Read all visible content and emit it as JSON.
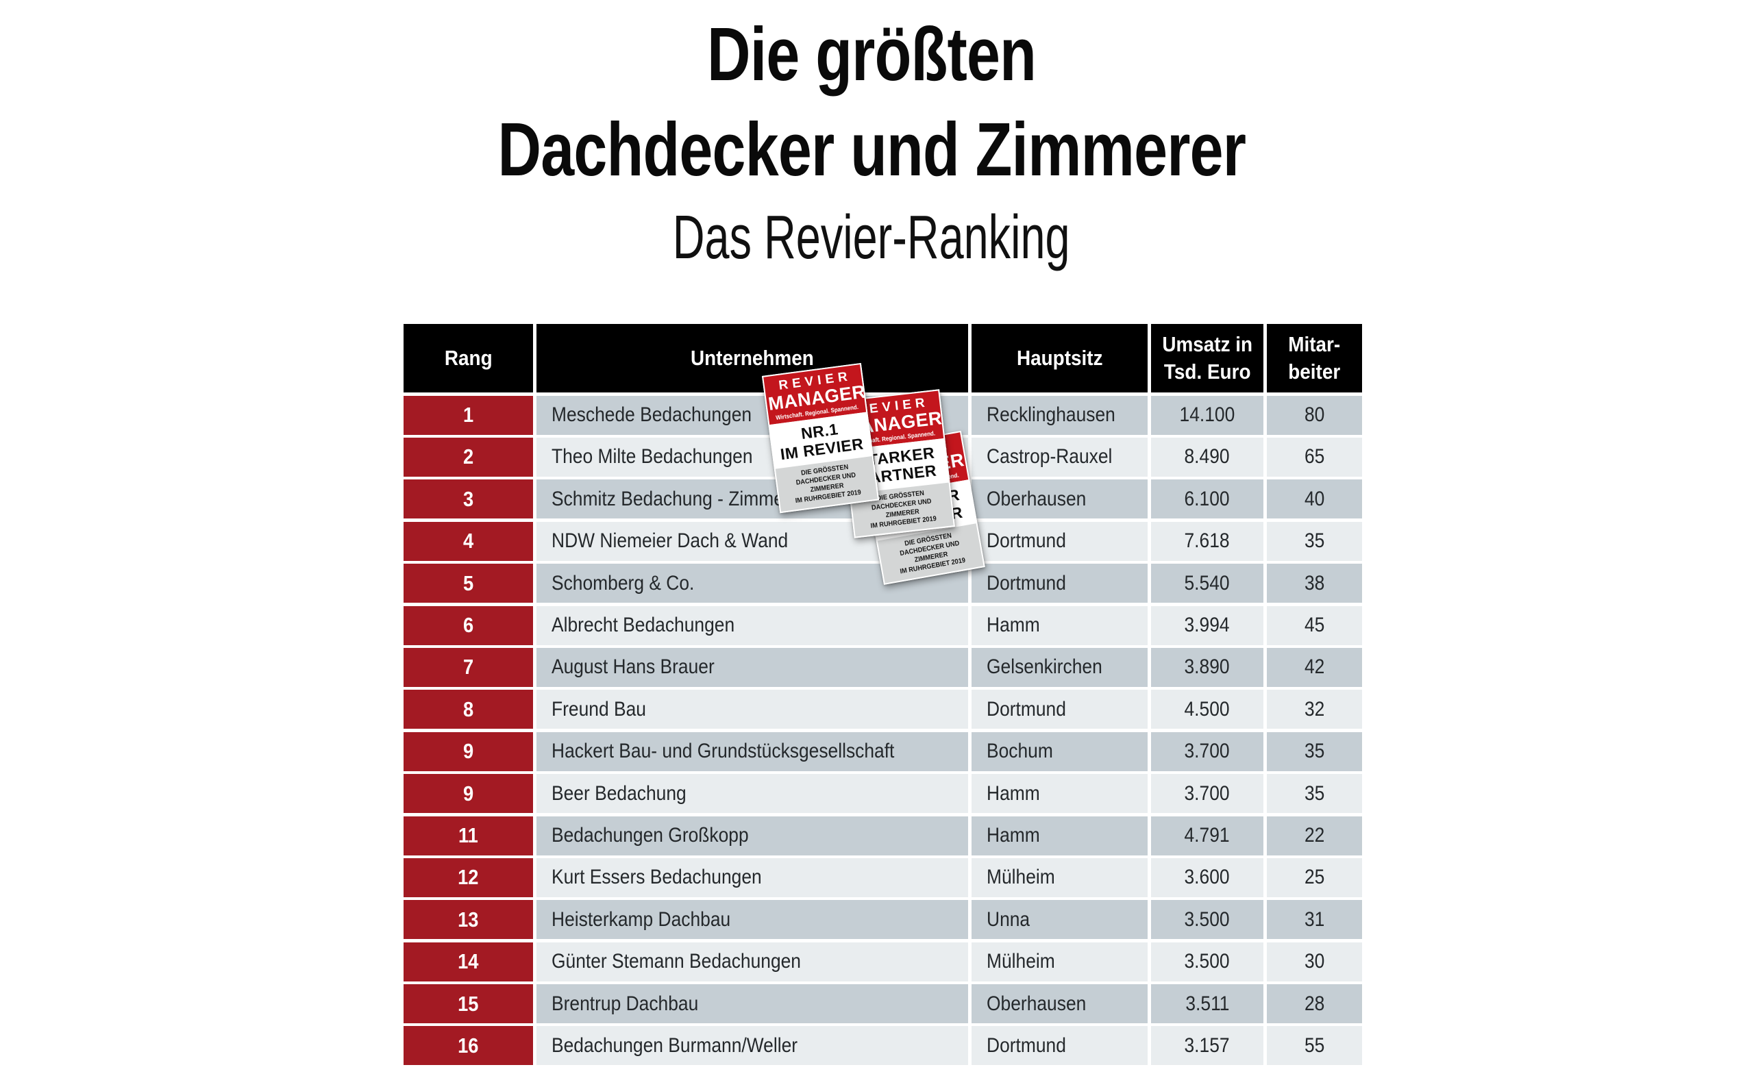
{
  "title": {
    "line1": "Die größten",
    "line2": "Dachdecker und Zimmerer",
    "subtitle": "Das Revier-Ranking"
  },
  "table": {
    "headers": {
      "rank": "Rang",
      "company": "Unternehmen",
      "city": "Hauptsitz",
      "revenue": "Umsatz in\nTsd. Euro",
      "employees": "Mitar-\nbeiter"
    },
    "rows": [
      {
        "rank": "1",
        "company": "Meschede Bedachungen",
        "city": "Recklinghausen",
        "revenue": "14.100",
        "employees": "80"
      },
      {
        "rank": "2",
        "company": "Theo Milte Bedachungen",
        "city": "Castrop-Rauxel",
        "revenue": "8.490",
        "employees": "65"
      },
      {
        "rank": "3",
        "company": "Schmitz Bedachung - Zimmerei",
        "city": "Oberhausen",
        "revenue": "6.100",
        "employees": "40"
      },
      {
        "rank": "4",
        "company": "NDW Niemeier Dach & Wand",
        "city": "Dortmund",
        "revenue": "7.618",
        "employees": "35"
      },
      {
        "rank": "5",
        "company": "Schomberg & Co.",
        "city": "Dortmund",
        "revenue": "5.540",
        "employees": "38"
      },
      {
        "rank": "6",
        "company": "Albrecht Bedachungen",
        "city": "Hamm",
        "revenue": "3.994",
        "employees": "45"
      },
      {
        "rank": "7",
        "company": "August Hans Brauer",
        "city": "Gelsenkirchen",
        "revenue": "3.890",
        "employees": "42"
      },
      {
        "rank": "8",
        "company": "Freund Bau",
        "city": "Dortmund",
        "revenue": "4.500",
        "employees": "32"
      },
      {
        "rank": "9",
        "company": "Hackert Bau- und Grundstücksgesellschaft",
        "city": "Bochum",
        "revenue": "3.700",
        "employees": "35"
      },
      {
        "rank": "9",
        "company": "Beer Bedachung",
        "city": "Hamm",
        "revenue": "3.700",
        "employees": "35"
      },
      {
        "rank": "11",
        "company": "Bedachungen Großkopp",
        "city": "Hamm",
        "revenue": "4.791",
        "employees": "22"
      },
      {
        "rank": "12",
        "company": "Kurt Essers Bedachungen",
        "city": "Mülheim",
        "revenue": "3.600",
        "employees": "25"
      },
      {
        "rank": "13",
        "company": "Heisterkamp Dachbau",
        "city": "Unna",
        "revenue": "3.500",
        "employees": "31"
      },
      {
        "rank": "14",
        "company": "Günter Stemann Bedachungen",
        "city": "Mülheim",
        "revenue": "3.500",
        "employees": "30"
      },
      {
        "rank": "15",
        "company": "Brentrup Dachbau",
        "city": "Oberhausen",
        "revenue": "3.511",
        "employees": "28"
      },
      {
        "rank": "16",
        "company": "Bedachungen Burmann/Weller",
        "city": "Dortmund",
        "revenue": "3.157",
        "employees": "55"
      }
    ]
  },
  "badges": [
    {
      "brand_line1": "REVIER",
      "brand_line2": "MANAGER",
      "tagline": "Wirtschaft. Regional. Spannend.",
      "label": "NR.1\nIM REVIER",
      "sub": "DIE GRÖSSTEN\nDACHDECKER UND ZIMMERER\nIM RUHRGEBIET 2019"
    },
    {
      "brand_line1": "REVIER",
      "brand_line2": "MANAGER",
      "tagline": "Wirtschaft. Regional. Spannend.",
      "label": "STARKER\nPARTNER",
      "sub": "DIE GRÖSSTEN\nDACHDECKER UND ZIMMERER\nIM RUHRGEBIET 2019"
    },
    {
      "brand_line1": "REVIER",
      "brand_line2": "MANAGER",
      "tagline": "Wirtschaft. Regional. Spannend.",
      "label": "STARKER\nPARTNER",
      "sub": "DIE GRÖSSTEN\nDACHDECKER UND ZIMMERER\nIM RUHRGEBIET 2019"
    }
  ],
  "colors": {
    "rank_red": "#a31a23",
    "badge_red": "#c3161d",
    "header_bg": "#000000",
    "row_dark": "#c5ced4",
    "row_light": "#e9edef"
  },
  "chart_data": {
    "type": "table",
    "title": "Die größten Dachdecker und Zimmerer",
    "subtitle": "Das Revier-Ranking",
    "columns": [
      "Rang",
      "Unternehmen",
      "Hauptsitz",
      "Umsatz in Tsd. Euro",
      "Mitarbeiter"
    ],
    "rows": [
      [
        1,
        "Meschede Bedachungen",
        "Recklinghausen",
        14100,
        80
      ],
      [
        2,
        "Theo Milte Bedachungen",
        "Castrop-Rauxel",
        8490,
        65
      ],
      [
        3,
        "Schmitz Bedachung - Zimmerei",
        "Oberhausen",
        6100,
        40
      ],
      [
        4,
        "NDW Niemeier Dach & Wand",
        "Dortmund",
        7618,
        35
      ],
      [
        5,
        "Schomberg & Co.",
        "Dortmund",
        5540,
        38
      ],
      [
        6,
        "Albrecht Bedachungen",
        "Hamm",
        3994,
        45
      ],
      [
        7,
        "August Hans Brauer",
        "Gelsenkirchen",
        3890,
        42
      ],
      [
        8,
        "Freund Bau",
        "Dortmund",
        4500,
        32
      ],
      [
        9,
        "Hackert Bau- und Grundstücksgesellschaft",
        "Bochum",
        3700,
        35
      ],
      [
        9,
        "Beer Bedachung",
        "Hamm",
        3700,
        35
      ],
      [
        11,
        "Bedachungen Großkopp",
        "Hamm",
        4791,
        22
      ],
      [
        12,
        "Kurt Essers Bedachungen",
        "Mülheim",
        3600,
        25
      ],
      [
        13,
        "Heisterkamp Dachbau",
        "Unna",
        3500,
        31
      ],
      [
        14,
        "Günter Stemann Bedachungen",
        "Mülheim",
        3500,
        30
      ],
      [
        15,
        "Brentrup Dachbau",
        "Oberhausen",
        3511,
        28
      ],
      [
        16,
        "Bedachungen Burmann/Weller",
        "Dortmund",
        3157,
        55
      ]
    ]
  }
}
